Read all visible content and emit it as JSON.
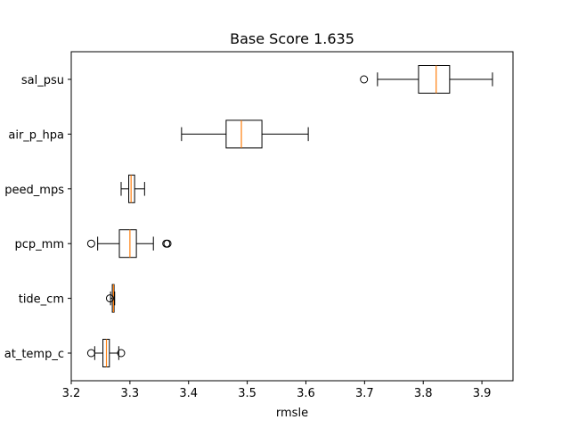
{
  "chart_data": {
    "type": "boxplot",
    "orientation": "horizontal",
    "title": "Base Score 1.635",
    "xlabel": "rmsle",
    "ylabel": "",
    "xlim": [
      3.2,
      3.953
    ],
    "xticks": [
      3.2,
      3.3,
      3.4,
      3.5,
      3.6,
      3.7,
      3.8,
      3.9
    ],
    "xtick_labels": [
      "3.2",
      "3.3",
      "3.4",
      "3.5",
      "3.6",
      "3.7",
      "3.8",
      "3.9"
    ],
    "grid": false,
    "box_color": "#000000",
    "median_color": "#ff7f0e",
    "series": [
      {
        "label": "at_temp_c",
        "whisker_low": 3.24,
        "q1": 3.254,
        "median": 3.26,
        "q3": 3.265,
        "whisker_high": 3.281,
        "outliers": [
          3.234,
          3.285
        ]
      },
      {
        "label": "tide_cm",
        "whisker_low": 3.267,
        "q1": 3.27,
        "median": 3.272,
        "q3": 3.273,
        "whisker_high": 3.274,
        "outliers": [
          3.266
        ]
      },
      {
        "label": "pcp_mm",
        "whisker_low": 3.245,
        "q1": 3.282,
        "median": 3.3,
        "q3": 3.311,
        "whisker_high": 3.34,
        "outliers": [
          3.234,
          3.362,
          3.364
        ]
      },
      {
        "label": "peed_mps",
        "whisker_low": 3.285,
        "q1": 3.298,
        "median": 3.302,
        "q3": 3.308,
        "whisker_high": 3.325,
        "outliers": []
      },
      {
        "label": "air_p_hpa",
        "whisker_low": 3.388,
        "q1": 3.464,
        "median": 3.49,
        "q3": 3.525,
        "whisker_high": 3.604,
        "outliers": []
      },
      {
        "label": "sal_psu",
        "whisker_low": 3.722,
        "q1": 3.792,
        "median": 3.822,
        "q3": 3.845,
        "whisker_high": 3.918,
        "outliers": [
          3.699
        ]
      }
    ]
  }
}
